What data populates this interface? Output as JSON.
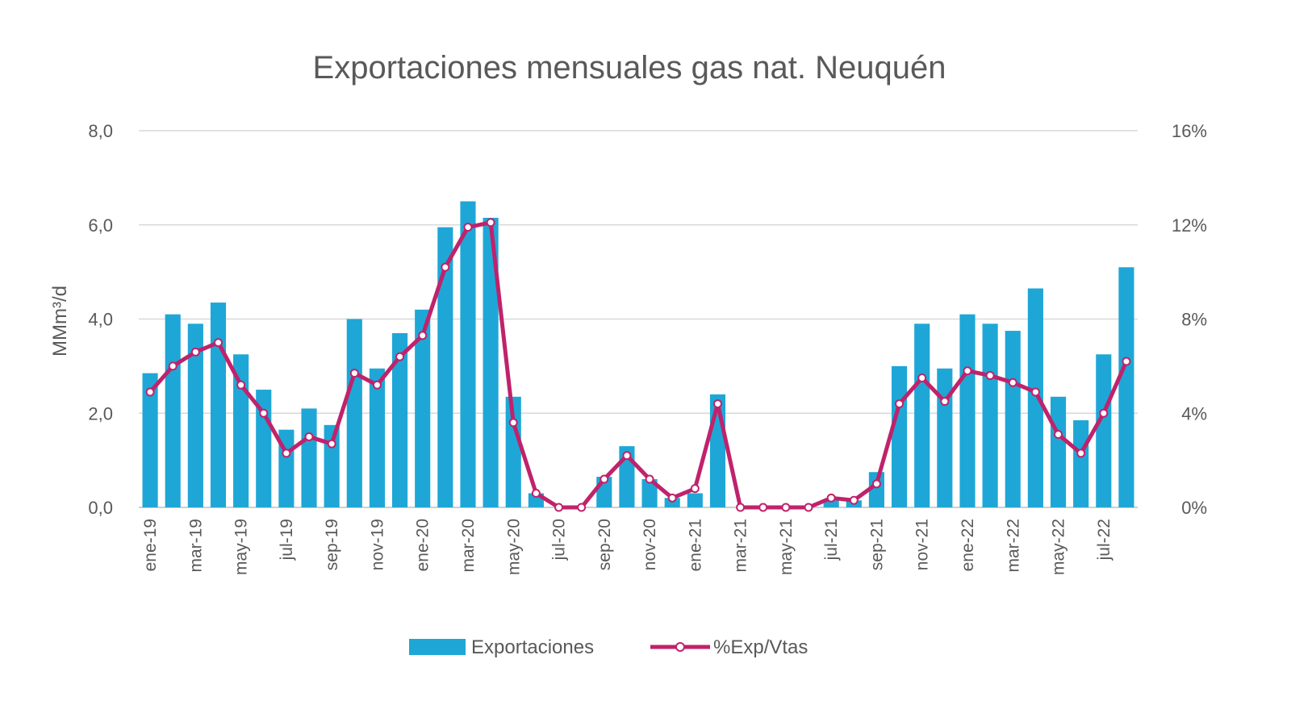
{
  "chart_data": {
    "type": "bar",
    "title": "Exportaciones mensuales gas nat. Neuquén",
    "ylabel": "MMm³/d",
    "y_left": {
      "lim": [
        0,
        8
      ],
      "ticks": [
        "0,0",
        "2,0",
        "4,0",
        "6,0",
        "8,0"
      ]
    },
    "y_right": {
      "lim": [
        0,
        16
      ],
      "ticks": [
        "0%",
        "4%",
        "8%",
        "12%",
        "16%"
      ]
    },
    "grid": "horizontal",
    "legend_position": "bottom",
    "x_tick_labels": [
      "ene-19",
      "mar-19",
      "may-19",
      "jul-19",
      "sep-19",
      "nov-19",
      "ene-20",
      "mar-20",
      "may-20",
      "jul-20",
      "sep-20",
      "nov-20",
      "ene-21",
      "mar-21",
      "may-21",
      "jul-21",
      "sep-21",
      "nov-21",
      "ene-22",
      "mar-22",
      "may-22",
      "jul-22"
    ],
    "categories": [
      "ene-19",
      "feb-19",
      "mar-19",
      "abr-19",
      "may-19",
      "jun-19",
      "jul-19",
      "ago-19",
      "sep-19",
      "oct-19",
      "nov-19",
      "dic-19",
      "ene-20",
      "feb-20",
      "mar-20",
      "abr-20",
      "may-20",
      "jun-20",
      "jul-20",
      "ago-20",
      "sep-20",
      "oct-20",
      "nov-20",
      "dic-20",
      "ene-21",
      "feb-21",
      "mar-21",
      "abr-21",
      "may-21",
      "jun-21",
      "jul-21",
      "ago-21",
      "sep-21",
      "oct-21",
      "nov-21",
      "dic-21",
      "ene-22",
      "feb-22",
      "mar-22",
      "abr-22",
      "may-22",
      "jun-22",
      "jul-22",
      "ago-22"
    ],
    "series": [
      {
        "name": "Exportaciones",
        "type": "bar",
        "axis": "left",
        "color": "#1ea7d6",
        "values": [
          2.85,
          4.1,
          3.9,
          4.35,
          3.25,
          2.5,
          1.65,
          2.1,
          1.75,
          4.0,
          2.95,
          3.7,
          4.2,
          5.95,
          6.5,
          6.15,
          2.35,
          0.3,
          0.0,
          0.0,
          0.65,
          1.3,
          0.6,
          0.2,
          0.3,
          2.4,
          0.0,
          0.0,
          0.0,
          0.0,
          0.15,
          0.15,
          0.75,
          3.0,
          3.9,
          2.95,
          4.1,
          3.9,
          3.75,
          4.65,
          2.35,
          1.85,
          3.25,
          5.1
        ]
      },
      {
        "name": "%Exp/Vtas",
        "type": "line",
        "axis": "right",
        "color": "#c0226b",
        "values": [
          4.9,
          6.0,
          6.6,
          7.0,
          5.2,
          4.0,
          2.3,
          3.0,
          2.7,
          5.7,
          5.2,
          6.4,
          7.3,
          10.2,
          11.9,
          12.1,
          3.6,
          0.6,
          0.0,
          0.0,
          1.2,
          2.2,
          1.2,
          0.4,
          0.8,
          4.4,
          0.0,
          0.0,
          0.0,
          0.0,
          0.4,
          0.3,
          1.0,
          4.4,
          5.5,
          4.5,
          5.8,
          5.6,
          5.3,
          4.9,
          3.1,
          2.3,
          4.0,
          6.2
        ]
      }
    ]
  }
}
